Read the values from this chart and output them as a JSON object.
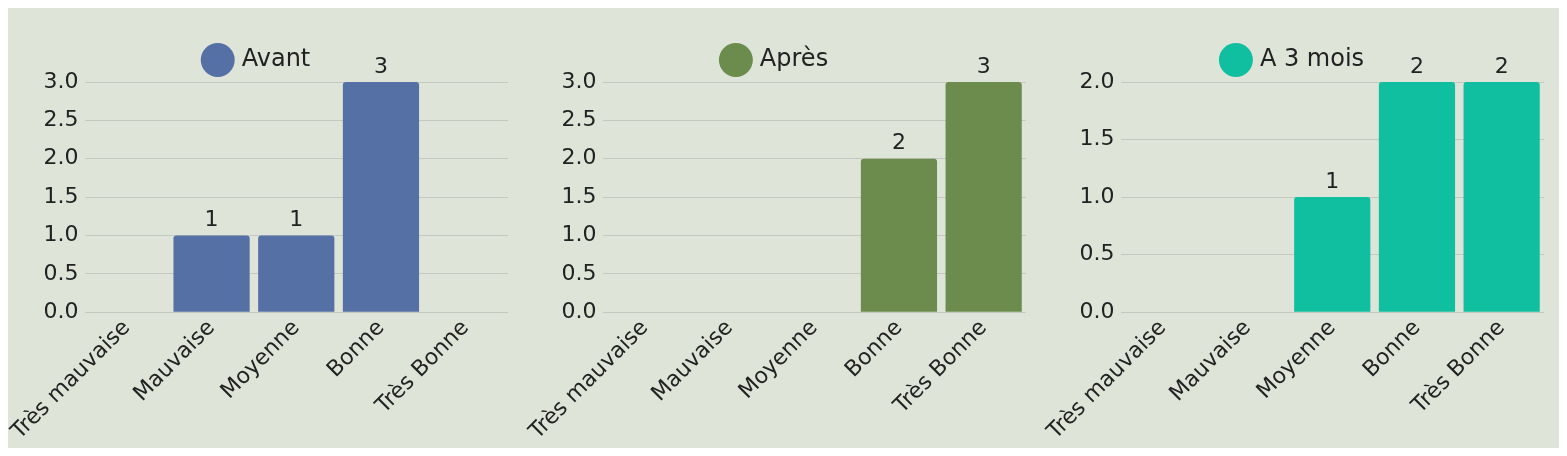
{
  "chart_data": [
    {
      "type": "bar",
      "categories": [
        "Très mauvaise",
        "Mauvaise",
        "Moyenne",
        "Bonne",
        "Très Bonne"
      ],
      "series": [
        {
          "name": "Avant",
          "color": "#5470a4",
          "values": [
            null,
            1,
            1,
            3,
            null
          ]
        }
      ],
      "ylim": [
        0,
        3
      ],
      "yticks": [
        {
          "value": 0,
          "label": "0.0"
        },
        {
          "value": 0.5,
          "label": "0.5"
        },
        {
          "value": 1,
          "label": "1.0"
        },
        {
          "value": 1.5,
          "label": "1.5"
        },
        {
          "value": 2,
          "label": "2.0"
        },
        {
          "value": 2.5,
          "label": "2.5"
        },
        {
          "value": 3,
          "label": "3.0"
        }
      ],
      "grid": "y",
      "legend": "top",
      "data_labels": true
    },
    {
      "type": "bar",
      "categories": [
        "Très mauvaise",
        "Mauvaise",
        "Moyenne",
        "Bonne",
        "Très Bonne"
      ],
      "series": [
        {
          "name": "Après",
          "color": "#6b8c4c",
          "values": [
            null,
            null,
            null,
            2,
            3
          ]
        }
      ],
      "ylim": [
        0,
        3
      ],
      "yticks": [
        {
          "value": 0,
          "label": "0.0"
        },
        {
          "value": 0.5,
          "label": "0.5"
        },
        {
          "value": 1,
          "label": "1.0"
        },
        {
          "value": 1.5,
          "label": "1.5"
        },
        {
          "value": 2,
          "label": "2.0"
        },
        {
          "value": 2.5,
          "label": "2.5"
        },
        {
          "value": 3,
          "label": "3.0"
        }
      ],
      "grid": "y",
      "legend": "top",
      "data_labels": true
    },
    {
      "type": "bar",
      "categories": [
        "Très mauvaise",
        "Mauvaise",
        "Moyenne",
        "Bonne",
        "Très Bonne"
      ],
      "series": [
        {
          "name": "A 3 mois",
          "color": "#10bf9f",
          "values": [
            null,
            null,
            1,
            2,
            2
          ]
        }
      ],
      "ylim": [
        0,
        2
      ],
      "yticks": [
        {
          "value": 0,
          "label": "0.0"
        },
        {
          "value": 0.5,
          "label": "0.5"
        },
        {
          "value": 1,
          "label": "1.0"
        },
        {
          "value": 1.5,
          "label": "1.5"
        },
        {
          "value": 2,
          "label": "2.0"
        }
      ],
      "grid": "y",
      "legend": "top",
      "data_labels": true
    }
  ]
}
